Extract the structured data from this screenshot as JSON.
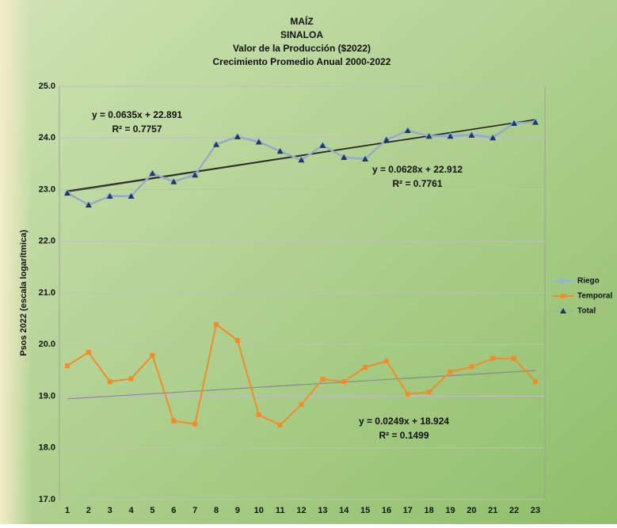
{
  "chart_data": {
    "type": "line",
    "title": [
      "MAÍZ",
      "SINALOA",
      "Valor de la Producción ($2022)",
      "Crecimiento Promedio Anual 2000-2022"
    ],
    "y_label": "Psos 2022 (escala logarítmica)",
    "x": [
      1,
      2,
      3,
      4,
      5,
      6,
      7,
      8,
      9,
      10,
      11,
      12,
      13,
      14,
      15,
      16,
      17,
      18,
      19,
      20,
      21,
      22,
      23
    ],
    "ylim": [
      17,
      25
    ],
    "yticks": [
      {
        "value": 17,
        "label": "17.0"
      },
      {
        "value": 18,
        "label": "18.0"
      },
      {
        "value": 19,
        "label": "19.0"
      },
      {
        "value": 20,
        "label": "20.0"
      },
      {
        "value": 21,
        "label": "21.0"
      },
      {
        "value": 22,
        "label": "22.0"
      },
      {
        "value": 23,
        "label": "23.0"
      },
      {
        "value": 24,
        "label": "24.0"
      },
      {
        "value": 25,
        "label": "25.0"
      }
    ],
    "grid": true,
    "legend": "right",
    "series": [
      {
        "name": "Riego",
        "color": "#8db4e2",
        "marker": "diamond",
        "values": [
          22.94,
          22.71,
          22.88,
          22.88,
          23.32,
          23.16,
          23.29,
          23.88,
          24.03,
          23.93,
          23.75,
          23.58,
          23.86,
          23.63,
          23.6,
          23.97,
          24.15,
          24.04,
          24.05,
          24.07,
          24.02,
          24.29,
          24.31
        ]
      },
      {
        "name": "Temporal",
        "color": "#f28c28",
        "marker": "square",
        "values": [
          19.59,
          19.85,
          19.28,
          19.34,
          19.79,
          18.52,
          18.46,
          20.39,
          20.08,
          18.64,
          18.44,
          18.84,
          19.33,
          19.28,
          19.56,
          19.68,
          19.04,
          19.08,
          19.47,
          19.57,
          19.73,
          19.73,
          19.28
        ]
      },
      {
        "name": "Total",
        "color": "#1f3864",
        "line_color": "#9aa9bb",
        "marker": "triangle",
        "values": [
          22.93,
          22.7,
          22.87,
          22.87,
          23.31,
          23.15,
          23.28,
          23.87,
          24.02,
          23.92,
          23.74,
          23.57,
          23.85,
          23.62,
          23.59,
          23.96,
          24.14,
          24.03,
          24.03,
          24.05,
          24.0,
          24.28,
          24.3
        ]
      }
    ],
    "trendlines": [
      {
        "equation": "y = 0.0635x + 22.891",
        "r2": "R² = 0.7757",
        "slope": 0.0635,
        "intercept": 22.891,
        "color": "#404040"
      },
      {
        "equation": "y = 0.0628x + 22.912",
        "r2": "R² = 0.7761",
        "slope": 0.0628,
        "intercept": 22.912,
        "color": "#222222"
      },
      {
        "equation": "y = 0.0249x + 18.924",
        "r2": "R² = 0.1499",
        "slope": 0.0249,
        "intercept": 18.924,
        "color": "#8a8a8a"
      }
    ]
  }
}
